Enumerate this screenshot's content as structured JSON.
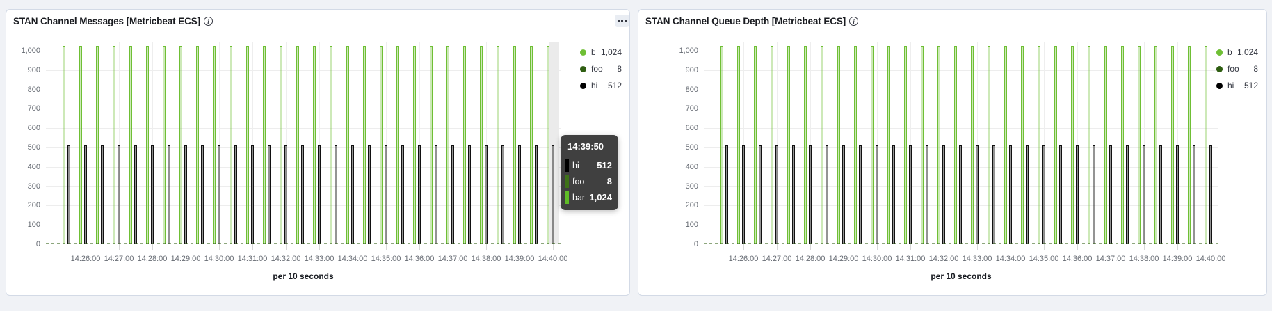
{
  "icons": {
    "info": "i",
    "panel_options": "ellipsis"
  },
  "panels": [
    {
      "title": "STAN Channel Messages [Metricbeat ECS]",
      "has_options_button": true,
      "hover_band": true,
      "tooltip": {
        "time": "14:39:50",
        "rows": [
          {
            "label": "hi",
            "value": "512",
            "color": "#000000"
          },
          {
            "label": "foo",
            "value": "8",
            "color": "#3F7218"
          },
          {
            "label": "bar",
            "value": "1,024",
            "color": "#5FBC26"
          }
        ]
      }
    },
    {
      "title": "STAN Channel Queue Depth [Metricbeat ECS]",
      "has_options_button": false,
      "hover_band": false,
      "tooltip": null
    }
  ],
  "chart_data": [
    {
      "type": "bar",
      "title": "STAN Channel Messages [Metricbeat ECS]",
      "xlabel": "per 10 seconds",
      "x_tick_labels": [
        "14:26:00",
        "14:27:00",
        "14:28:00",
        "14:29:00",
        "14:30:00",
        "14:31:00",
        "14:32:00",
        "14:33:00",
        "14:34:00",
        "14:35:00",
        "14:36:00",
        "14:37:00",
        "14:38:00",
        "14:39:00",
        "14:40:00"
      ],
      "y_tick_labels": [
        "0",
        "100",
        "200",
        "300",
        "400",
        "500",
        "600",
        "700",
        "800",
        "900",
        "1,000"
      ],
      "ylim": [
        0,
        1050
      ],
      "grid": true,
      "legend_position": "right",
      "visible_buckets": 30,
      "values_constant_across_buckets": true,
      "series": [
        {
          "name": "bar",
          "value": 1024,
          "display_value": "1,024",
          "color": "#6FBF35",
          "legend_clipped": true
        },
        {
          "name": "foo",
          "value": 8,
          "display_value": "8",
          "color": "#2F5E12",
          "legend_clipped": false
        },
        {
          "name": "hi",
          "value": 512,
          "display_value": "512",
          "color": "#000000",
          "legend_clipped": false
        }
      ],
      "hovered_bucket_time": "14:39:50"
    },
    {
      "type": "bar",
      "title": "STAN Channel Queue Depth [Metricbeat ECS]",
      "xlabel": "per 10 seconds",
      "x_tick_labels": [
        "14:26:00",
        "14:27:00",
        "14:28:00",
        "14:29:00",
        "14:30:00",
        "14:31:00",
        "14:32:00",
        "14:33:00",
        "14:34:00",
        "14:35:00",
        "14:36:00",
        "14:37:00",
        "14:38:00",
        "14:39:00",
        "14:40:00"
      ],
      "y_tick_labels": [
        "0",
        "100",
        "200",
        "300",
        "400",
        "500",
        "600",
        "700",
        "800",
        "900",
        "1,000"
      ],
      "ylim": [
        0,
        1050
      ],
      "grid": true,
      "legend_position": "right",
      "visible_buckets": 30,
      "values_constant_across_buckets": true,
      "series": [
        {
          "name": "bar",
          "value": 1024,
          "display_value": "1,024",
          "color": "#6FBF35",
          "legend_clipped": true
        },
        {
          "name": "foo",
          "value": 8,
          "display_value": "8",
          "color": "#2F5E12",
          "legend_clipped": false
        },
        {
          "name": "hi",
          "value": 512,
          "display_value": "512",
          "color": "#000000",
          "legend_clipped": false
        }
      ],
      "hovered_bucket_time": null
    }
  ]
}
